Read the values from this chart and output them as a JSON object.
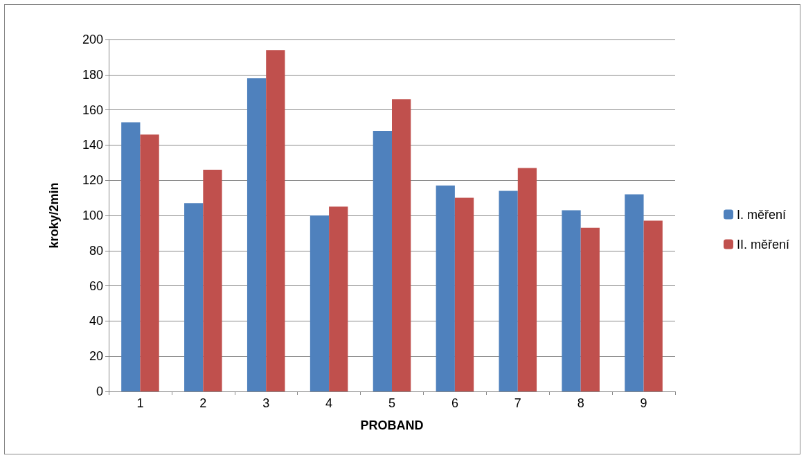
{
  "chart_data": {
    "type": "bar",
    "xlabel": "PROBAND",
    "ylabel": "kroky/2min",
    "categories": [
      "1",
      "2",
      "3",
      "4",
      "5",
      "6",
      "7",
      "8",
      "9"
    ],
    "series": [
      {
        "name": "I. měření",
        "color": "#4f81bd",
        "values": [
          153,
          107,
          178,
          100,
          148,
          117,
          114,
          103,
          112
        ]
      },
      {
        "name": "II. měření",
        "color": "#c0504d",
        "values": [
          146,
          126,
          194,
          105,
          166,
          110,
          127,
          93,
          97
        ]
      }
    ],
    "ylim": [
      0,
      200
    ],
    "yticks": [
      0,
      20,
      40,
      60,
      80,
      100,
      120,
      140,
      160,
      180,
      200
    ],
    "grid": "y",
    "legend": "right"
  }
}
